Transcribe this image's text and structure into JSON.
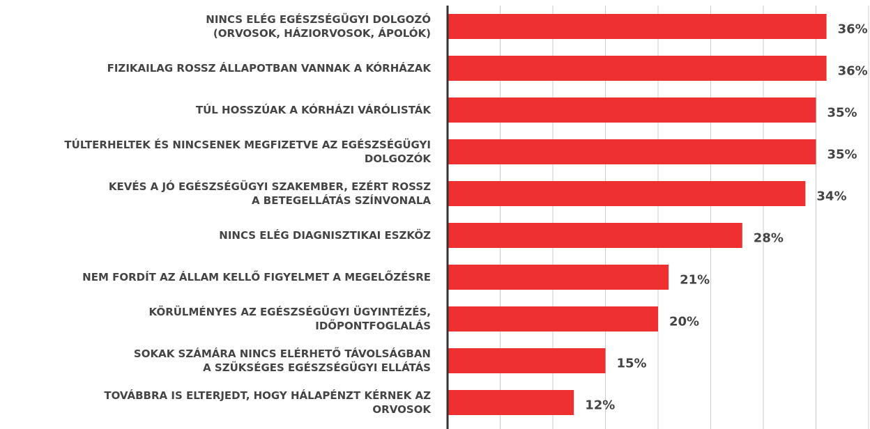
{
  "chart_data": {
    "type": "bar",
    "orientation": "horizontal",
    "color": "#ee3030",
    "grid": true,
    "categories": [
      "NINCS ELÉG EGÉSZSÉGÜGYI DOLGOZÓ\n(ORVOSOK, HÁZIORVOSOK, ÁPOLÓK)",
      "FIZIKAILAG ROSSZ ÁLLAPOTBAN VANNAK A KÓRHÁZAK",
      "TÚL HOSSZÚAK A KÓRHÁZI VÁRÓLISTÁK",
      "TÚLTERHELTEK ÉS NINCSENEK MEGFIZETVE AZ EGÉSZSÉGÜGYI\nDOLGOZÓK",
      "KEVÉS A JÓ EGÉSZSÉGÜGYI SZAKEMBER, EZÉRT ROSSZ\nA BETEGELLÁTÁS SZÍNVONALA",
      "NINCS ELÉG DIAGNISZTIKAI ESZKÖZ",
      "NEM FORDÍT AZ ÁLLAM KELLŐ FIGYELMET A MEGELŐZÉSRE",
      "KÖRÜLMÉNYES AZ EGÉSZSÉGÜGYI ÜGYINTÉZÉS,\nIDŐPONTFOGLALÁS",
      "SOKAK SZÁMÁRA NINCS ELÉRHETŐ TÁVOLSÁGBAN\nA SZÜKSÉGES EGÉSZSÉGÜGYI ELLÁTÁS",
      "TOVÁBBRA IS ELTERJEDT, HOGY HÁLAPÉNZT KÉRNEK AZ\nORVOSOK"
    ],
    "values": [
      36,
      36,
      35,
      35,
      34,
      28,
      21,
      20,
      15,
      12
    ],
    "value_labels": [
      "36%",
      "36%",
      "35%",
      "35%",
      "34%",
      "28%",
      "21%",
      "20%",
      "15%",
      "12%"
    ],
    "xlim": [
      0,
      40
    ],
    "xticks": [
      0,
      5,
      10,
      15,
      20,
      25,
      30,
      35,
      40
    ]
  }
}
